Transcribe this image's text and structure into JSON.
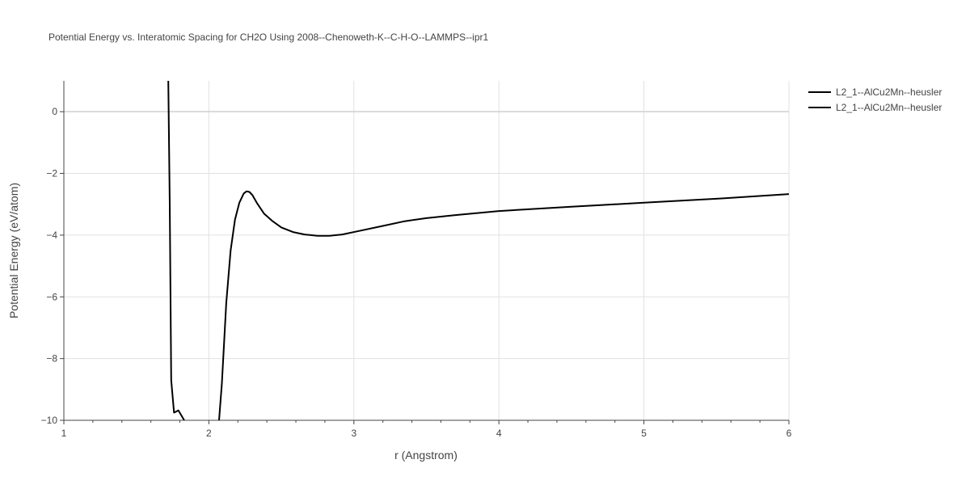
{
  "chart_data": {
    "type": "line",
    "title": "Potential Energy vs. Interatomic Spacing for CH2O Using 2008--Chenoweth-K--C-H-O--LAMMPS--ipr1",
    "xlabel": "r (Angstrom)",
    "ylabel": "Potential Energy (eV/atom)",
    "xlim": [
      1,
      6
    ],
    "ylim": [
      -10,
      1
    ],
    "x_ticks": [
      1,
      2,
      3,
      4,
      5,
      6
    ],
    "y_ticks": [
      0,
      -2,
      -4,
      -6,
      -8,
      -10
    ],
    "x_tick_labels": [
      "1",
      "2",
      "3",
      "4",
      "5",
      "6"
    ],
    "y_tick_labels": [
      "0",
      "−2",
      "−4",
      "−6",
      "−8",
      "−10"
    ],
    "grid": true,
    "legend_position": "top-right",
    "series": [
      {
        "name": "L2_1--AlCu2Mn--heusler",
        "color": "#000000",
        "points": [
          [
            1.72,
            1.0
          ],
          [
            1.73,
            -3.0
          ],
          [
            1.74,
            -8.7
          ],
          [
            1.76,
            -9.75
          ],
          [
            1.79,
            -9.68
          ],
          [
            1.83,
            -10.0
          ]
        ]
      },
      {
        "name": "L2_1--AlCu2Mn--heusler",
        "color": "#000000",
        "points": [
          [
            2.07,
            -10.0
          ],
          [
            2.09,
            -8.8
          ],
          [
            2.12,
            -6.2
          ],
          [
            2.15,
            -4.5
          ],
          [
            2.18,
            -3.5
          ],
          [
            2.21,
            -2.95
          ],
          [
            2.24,
            -2.65
          ],
          [
            2.26,
            -2.58
          ],
          [
            2.28,
            -2.6
          ],
          [
            2.3,
            -2.7
          ],
          [
            2.33,
            -2.95
          ],
          [
            2.38,
            -3.3
          ],
          [
            2.44,
            -3.55
          ],
          [
            2.5,
            -3.75
          ],
          [
            2.58,
            -3.9
          ],
          [
            2.66,
            -3.98
          ],
          [
            2.75,
            -4.02
          ],
          [
            2.83,
            -4.02
          ],
          [
            2.92,
            -3.98
          ],
          [
            3.05,
            -3.85
          ],
          [
            3.2,
            -3.7
          ],
          [
            3.35,
            -3.55
          ],
          [
            3.5,
            -3.45
          ],
          [
            3.7,
            -3.35
          ],
          [
            4.0,
            -3.22
          ],
          [
            4.5,
            -3.08
          ],
          [
            5.0,
            -2.95
          ],
          [
            5.5,
            -2.82
          ],
          [
            6.0,
            -2.67
          ]
        ]
      }
    ]
  }
}
